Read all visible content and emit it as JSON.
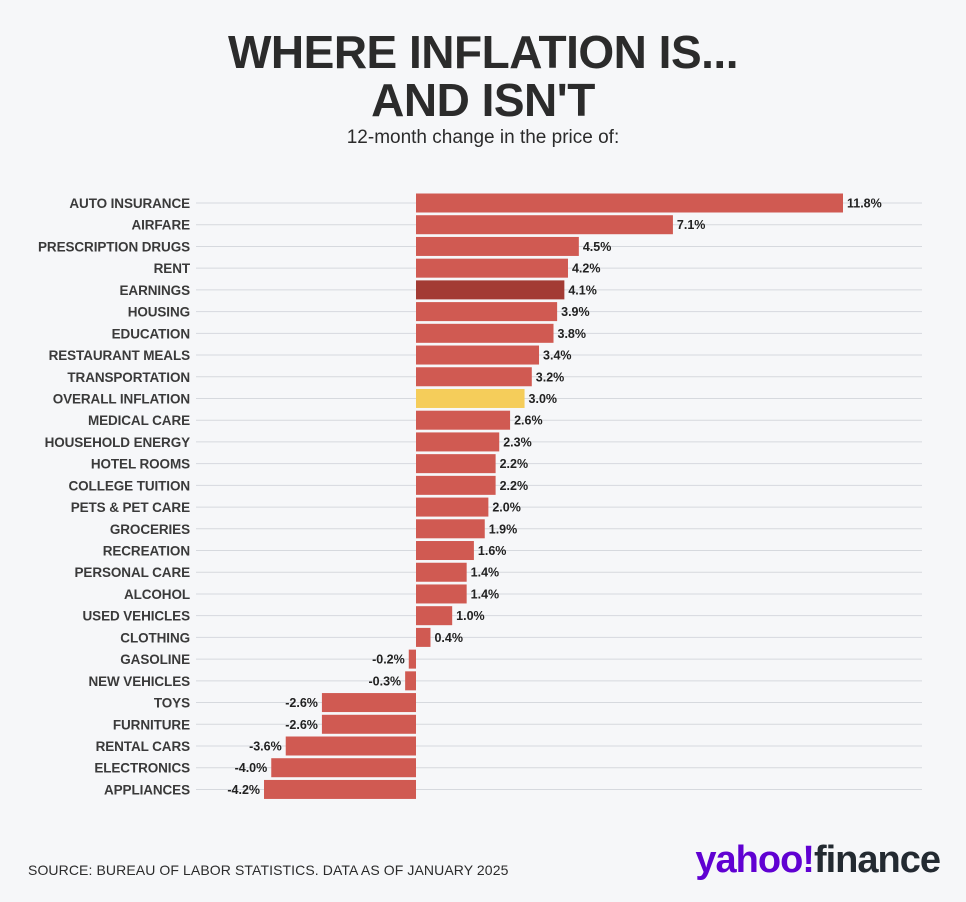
{
  "title_line1": "WHERE INFLATION IS...",
  "title_line2": "AND ISN'T",
  "subtitle": "12-month change in the price of:",
  "source": "SOURCE: BUREAU OF LABOR STATISTICS. DATA AS OF JANUARY 2025",
  "logo": {
    "part1": "yahoo!",
    "part2": "finance"
  },
  "colors": {
    "bar": "#d05a52",
    "earnings": "#a33b34",
    "overall": "#f5cd5a",
    "grid": "#d6d9de",
    "background": "#f6f7f9"
  },
  "chart_data": {
    "type": "bar",
    "orientation": "horizontal",
    "categories": [
      "AUTO INSURANCE",
      "AIRFARE",
      "PRESCRIPTION DRUGS",
      "RENT",
      "EARNINGS",
      "HOUSING",
      "EDUCATION",
      "RESTAURANT MEALS",
      "TRANSPORTATION",
      "OVERALL INFLATION",
      "MEDICAL CARE",
      "HOUSEHOLD ENERGY",
      "HOTEL ROOMS",
      "COLLEGE TUITION",
      "PETS & PET CARE",
      "GROCERIES",
      "RECREATION",
      "PERSONAL CARE",
      "ALCOHOL",
      "USED VEHICLES",
      "CLOTHING",
      "GASOLINE",
      "NEW VEHICLES",
      "TOYS",
      "FURNITURE",
      "RENTAL CARS",
      "ELECTRONICS",
      "APPLIANCES"
    ],
    "values": [
      11.8,
      7.1,
      4.5,
      4.2,
      4.1,
      3.9,
      3.8,
      3.4,
      3.2,
      3.0,
      2.6,
      2.3,
      2.2,
      2.2,
      2.0,
      1.9,
      1.6,
      1.4,
      1.4,
      1.0,
      0.4,
      -0.2,
      -0.3,
      -2.6,
      -2.6,
      -3.6,
      -4.0,
      -4.2
    ],
    "labels": [
      "11.8%",
      "7.1%",
      "4.5%",
      "4.2%",
      "4.1%",
      "3.9%",
      "3.8%",
      "3.4%",
      "3.2%",
      "3.0%",
      "2.6%",
      "2.3%",
      "2.2%",
      "2.2%",
      "2.0%",
      "1.9%",
      "1.6%",
      "1.4%",
      "1.4%",
      "1.0%",
      "0.4%",
      "-0.2%",
      "-0.3%",
      "-2.6%",
      "-2.6%",
      "-3.6%",
      "-4.0%",
      "-4.2%"
    ],
    "highlights": {
      "EARNINGS": "earnings",
      "OVERALL INFLATION": "overall"
    },
    "xlim": [
      -4.2,
      11.8
    ],
    "grid": true,
    "title": "WHERE INFLATION IS... AND ISN'T",
    "subtitle": "12-month change in the price of:",
    "xlabel": "",
    "ylabel": ""
  }
}
